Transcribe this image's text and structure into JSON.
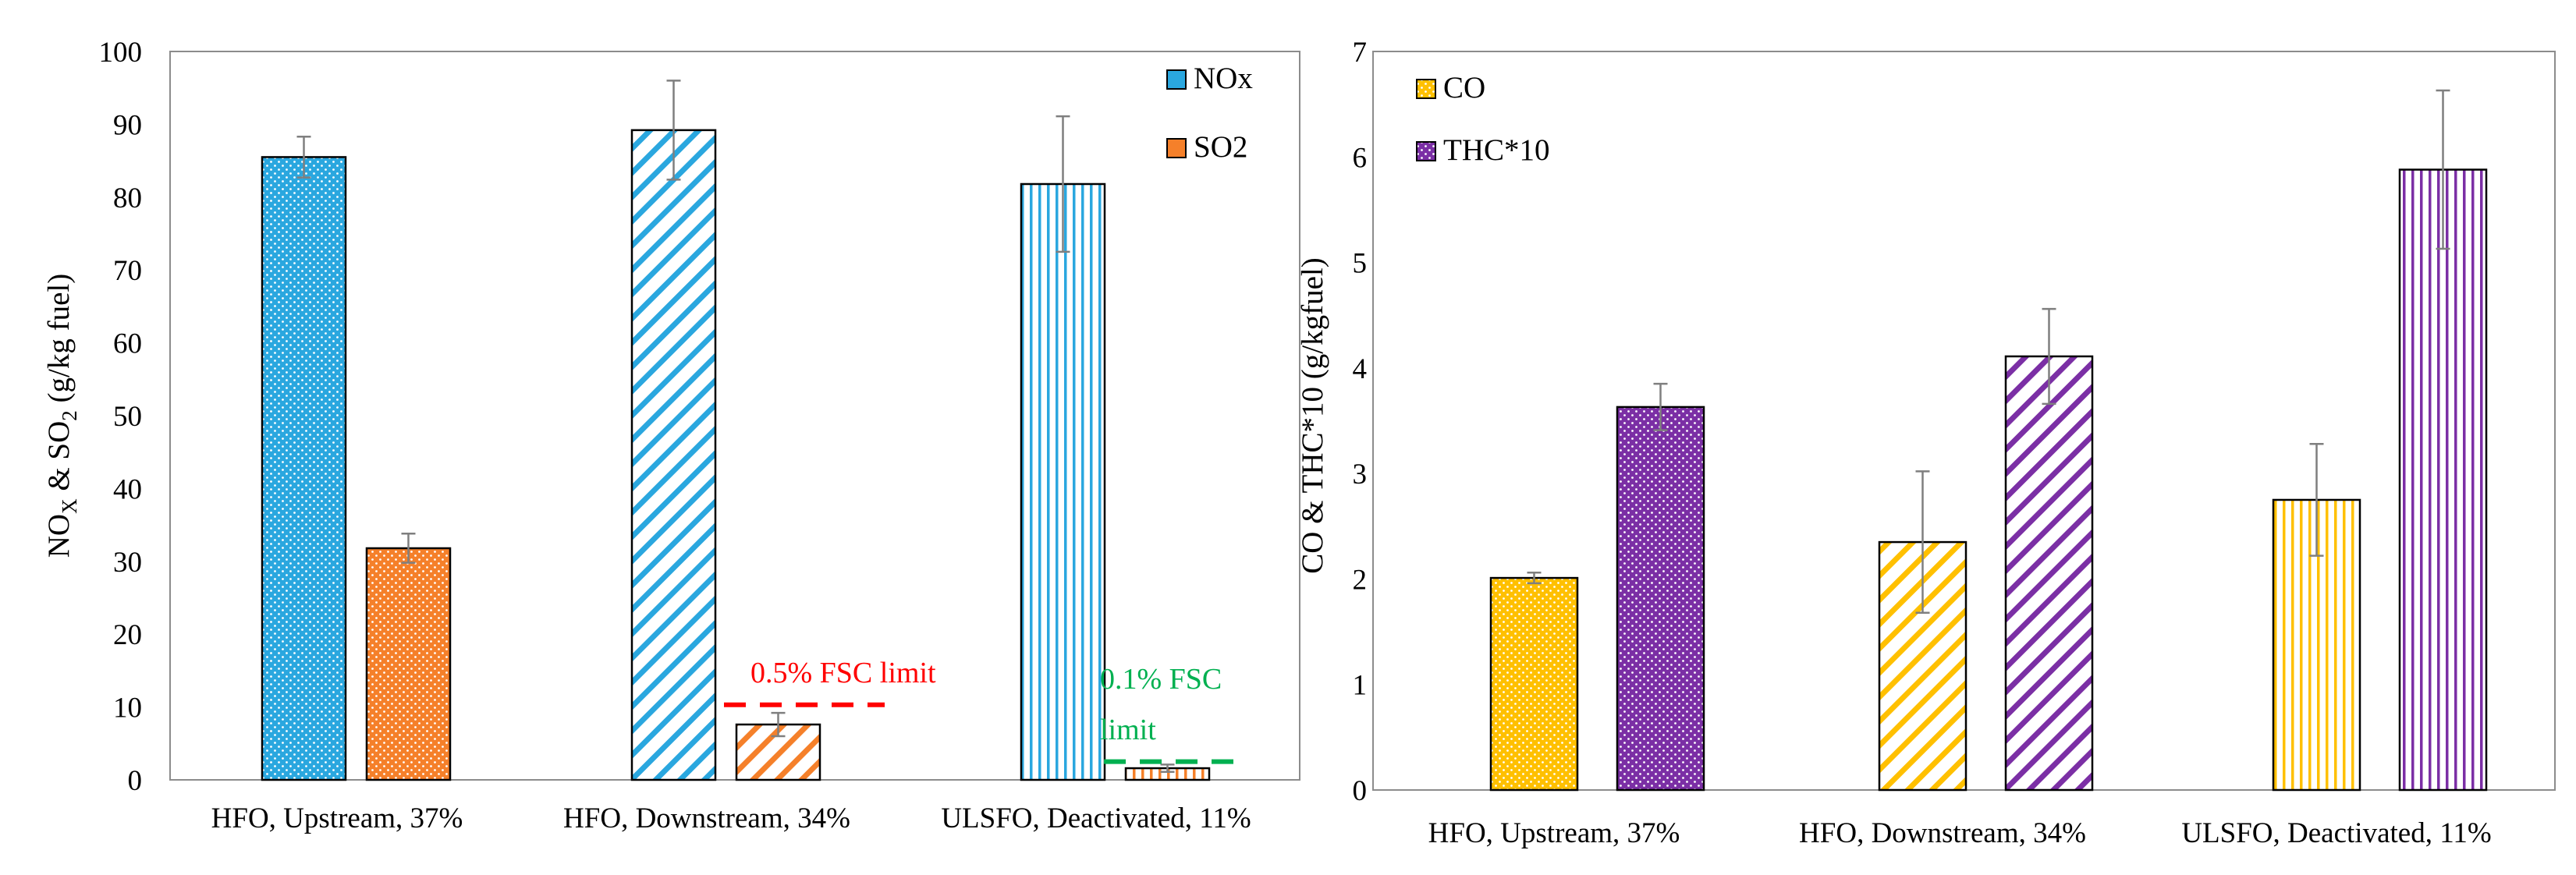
{
  "chart_data": [
    {
      "type": "bar",
      "title": "",
      "ylabel_parts": [
        "NO",
        "X",
        " & SO",
        "2",
        " (g/kg fuel)"
      ],
      "ylim": [
        0,
        100
      ],
      "yticks": [
        "0",
        "10",
        "20",
        "30",
        "40",
        "50",
        "60",
        "70",
        "80",
        "90",
        "100"
      ],
      "grid": false,
      "legend_position": "top-right",
      "categories": [
        "HFO, Upstream, 37%",
        "HFO, Downstream, 34%",
        "ULSFO, Deactivated, 11%"
      ],
      "series": [
        {
          "name": "NOx",
          "color": "#2AA7DF",
          "patterns": [
            "dots",
            "diag",
            "vert"
          ],
          "values": [
            85.5,
            89.2,
            81.8
          ],
          "errors": [
            2.8,
            6.8,
            9.3
          ]
        },
        {
          "name": "SO2",
          "color": "#F5802A",
          "patterns": [
            "dots",
            "diag",
            "vert"
          ],
          "values": [
            31.8,
            7.6,
            1.6
          ],
          "errors": [
            2.0,
            1.6,
            0.5
          ]
        }
      ],
      "annotations": [
        {
          "lines": [
            "0.5% FSC limit"
          ],
          "color": "#FF0000",
          "value": 10.3,
          "category": 1
        },
        {
          "lines": [
            "0.1% FSC",
            "limit"
          ],
          "color": "#00B050",
          "value": 2.5,
          "category": 2
        }
      ]
    },
    {
      "type": "bar",
      "title": "",
      "ylabel": "CO & THC*10 (g/kgfuel)",
      "ylim": [
        0,
        7
      ],
      "yticks": [
        "0",
        "1",
        "2",
        "3",
        "4",
        "5",
        "6",
        "7"
      ],
      "grid": false,
      "legend_position": "top-left",
      "categories": [
        "HFO, Upstream, 37%",
        "HFO, Downstream, 34%",
        "ULSFO, Deactivated, 11%"
      ],
      "series": [
        {
          "name": "CO",
          "color": "#FFC000",
          "patterns": [
            "dots",
            "diag",
            "vert"
          ],
          "values": [
            2.01,
            2.35,
            2.75
          ],
          "errors": [
            0.05,
            0.67,
            0.53
          ]
        },
        {
          "name": "THC*10",
          "color": "#7B2FA5",
          "patterns": [
            "dots",
            "diag",
            "vert"
          ],
          "values": [
            3.63,
            4.11,
            5.88
          ],
          "errors": [
            0.22,
            0.45,
            0.75
          ]
        }
      ]
    }
  ]
}
